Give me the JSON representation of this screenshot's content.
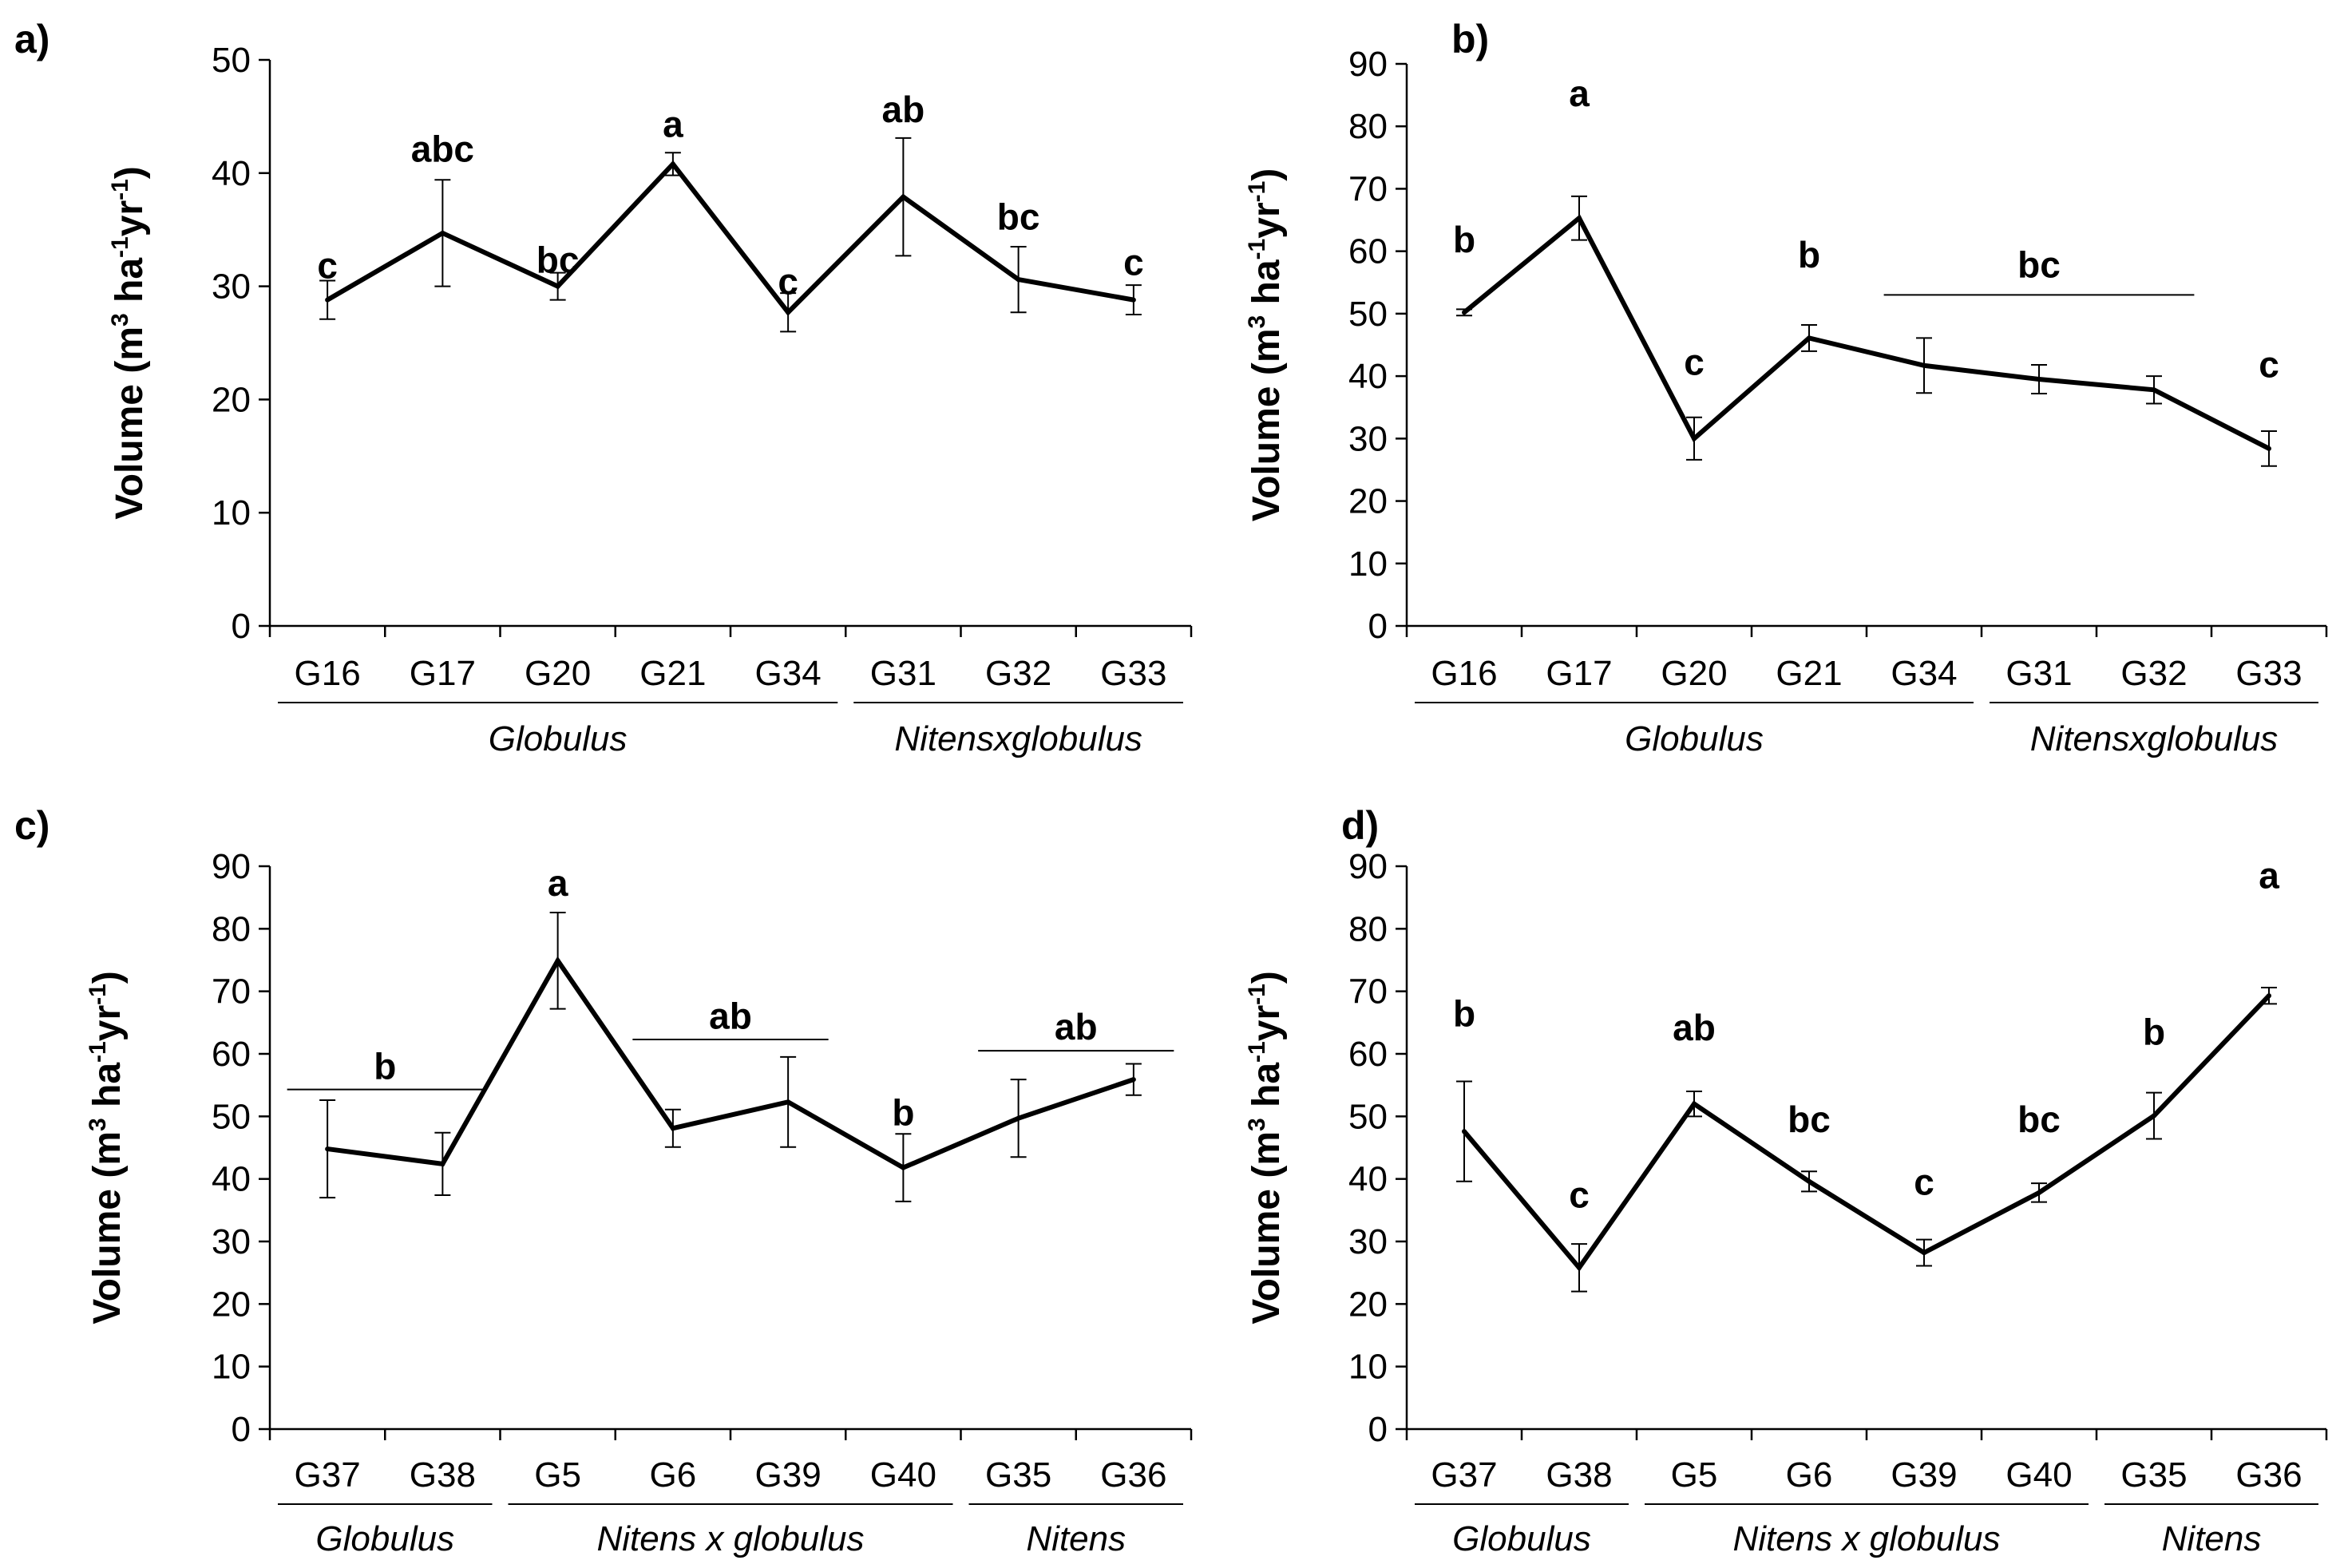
{
  "chart_data": [
    {
      "type": "line",
      "panel_label": "a)",
      "ylabel_prefix": "Volume (m",
      "ylabel_sup1": "3",
      "ylabel_mid1": " ha",
      "ylabel_sup2": "-1",
      "ylabel_mid2": "yr",
      "ylabel_sup3": "-1",
      "ylabel_suffix": ")",
      "ylim": [
        0,
        50
      ],
      "yticks": [
        "0",
        "10",
        "20",
        "30",
        "40",
        "50"
      ],
      "categories": [
        "G16",
        "G17",
        "G20",
        "G21",
        "G34",
        "G31",
        "G32",
        "G33"
      ],
      "values": [
        28.8,
        34.7,
        30.0,
        40.8,
        27.7,
        37.9,
        30.6,
        28.8
      ],
      "err": [
        1.7,
        4.7,
        1.2,
        1.0,
        1.7,
        5.2,
        2.9,
        1.3
      ],
      "letters": [
        "c",
        "abc",
        "bc",
        "a",
        "c",
        "ab",
        "bc",
        "c"
      ],
      "letter_values": [
        30.7,
        41.0,
        31.2,
        43.2,
        29.3,
        44.5,
        35.0,
        31.0
      ],
      "spans": [],
      "groups": [
        {
          "label": "Globulus",
          "from": 0,
          "to": 4
        },
        {
          "label": "Nitensxglobulus",
          "from": 5,
          "to": 7
        }
      ]
    },
    {
      "type": "line",
      "panel_label": "b)",
      "ylabel_prefix": "Volume (m",
      "ylabel_sup1": "3",
      "ylabel_mid1": " ha",
      "ylabel_sup2": "-1",
      "ylabel_mid2": "yr",
      "ylabel_sup3": "-1",
      "ylabel_suffix": ")",
      "ylim": [
        0,
        90
      ],
      "yticks": [
        "0",
        "10",
        "20",
        "30",
        "40",
        "50",
        "60",
        "70",
        "80",
        "90"
      ],
      "categories": [
        "G16",
        "G17",
        "G20",
        "G21",
        "G34",
        "G31",
        "G32",
        "G33"
      ],
      "values": [
        50.2,
        65.3,
        30.0,
        46.1,
        41.7,
        39.5,
        37.8,
        28.4
      ],
      "err": [
        0.5,
        3.5,
        3.4,
        2.1,
        4.4,
        2.3,
        2.2,
        2.8
      ],
      "letters": [
        "b",
        "a",
        "c",
        "b",
        "",
        "",
        "",
        "c"
      ],
      "letter_values": [
        59.8,
        83.2,
        40.2,
        57.4,
        0,
        0,
        0,
        39.8
      ],
      "spans": [
        {
          "label": "bc",
          "from": 4,
          "to": 6,
          "value": 53.0,
          "text_value": 55.8
        }
      ],
      "groups": [
        {
          "label": "Globulus",
          "from": 0,
          "to": 4
        },
        {
          "label": "Nitensxglobulus",
          "from": 5,
          "to": 7
        }
      ]
    },
    {
      "type": "line",
      "panel_label": "c)",
      "ylabel_prefix": "Volume (m",
      "ylabel_sup1": "3",
      "ylabel_mid1": " ha",
      "ylabel_sup2": "-1",
      "ylabel_mid2": "yr",
      "ylabel_sup3": "-1",
      "ylabel_suffix": ")",
      "ylim": [
        0,
        90
      ],
      "yticks": [
        "0",
        "10",
        "20",
        "30",
        "40",
        "50",
        "60",
        "70",
        "80",
        "90"
      ],
      "categories": [
        "G37",
        "G38",
        "G5",
        "G6",
        "G39",
        "G40",
        "G35",
        "G36"
      ],
      "values": [
        44.8,
        42.4,
        74.9,
        48.1,
        52.3,
        41.8,
        49.7,
        55.9
      ],
      "err": [
        7.8,
        5.0,
        7.7,
        3.0,
        7.2,
        5.4,
        6.2,
        2.5
      ],
      "letters": [
        "",
        "",
        "a",
        "",
        "",
        "b",
        "",
        ""
      ],
      "letter_values": [
        0,
        0,
        85.3,
        0,
        0,
        48.6,
        0,
        0
      ],
      "spans": [
        {
          "label": "b",
          "from": 0,
          "to": 1,
          "value": 54.3,
          "text_value": 56.0
        },
        {
          "label": "ab",
          "from": 3,
          "to": 4,
          "value": 62.3,
          "text_value": 64.0
        },
        {
          "label": "ab",
          "from": 6,
          "to": 7,
          "value": 60.5,
          "text_value": 62.3
        }
      ],
      "groups": [
        {
          "label": "Globulus",
          "from": 0,
          "to": 1
        },
        {
          "label": "Nitens x globulus",
          "from": 2,
          "to": 5
        },
        {
          "label": "Nitens",
          "from": 6,
          "to": 7
        }
      ]
    },
    {
      "type": "line",
      "panel_label": "d)",
      "ylabel_prefix": "Volume (m",
      "ylabel_sup1": "3",
      "ylabel_mid1": " ha",
      "ylabel_sup2": "-1",
      "ylabel_mid2": "yr",
      "ylabel_sup3": "-1",
      "ylabel_suffix": ")",
      "ylim": [
        0,
        90
      ],
      "yticks": [
        "0",
        "10",
        "20",
        "30",
        "40",
        "50",
        "60",
        "70",
        "80",
        "90"
      ],
      "categories": [
        "G37",
        "G38",
        "G5",
        "G6",
        "G39",
        "G40",
        "G35",
        "G36"
      ],
      "values": [
        47.6,
        25.8,
        52.0,
        39.6,
        28.2,
        37.8,
        50.1,
        69.3
      ],
      "err": [
        8.0,
        3.8,
        2.0,
        1.6,
        2.1,
        1.5,
        3.7,
        1.3
      ],
      "letters": [
        "b",
        "c",
        "ab",
        "bc",
        "c",
        "bc",
        "b",
        "a"
      ],
      "letter_values": [
        64.4,
        35.4,
        62.2,
        47.5,
        37.5,
        47.5,
        61.5,
        86.5
      ],
      "spans": [],
      "groups": [
        {
          "label": "Globulus",
          "from": 0,
          "to": 1
        },
        {
          "label": "Nitens x globulus",
          "from": 2,
          "to": 5
        },
        {
          "label": "Nitens",
          "from": 6,
          "to": 7
        }
      ]
    }
  ]
}
